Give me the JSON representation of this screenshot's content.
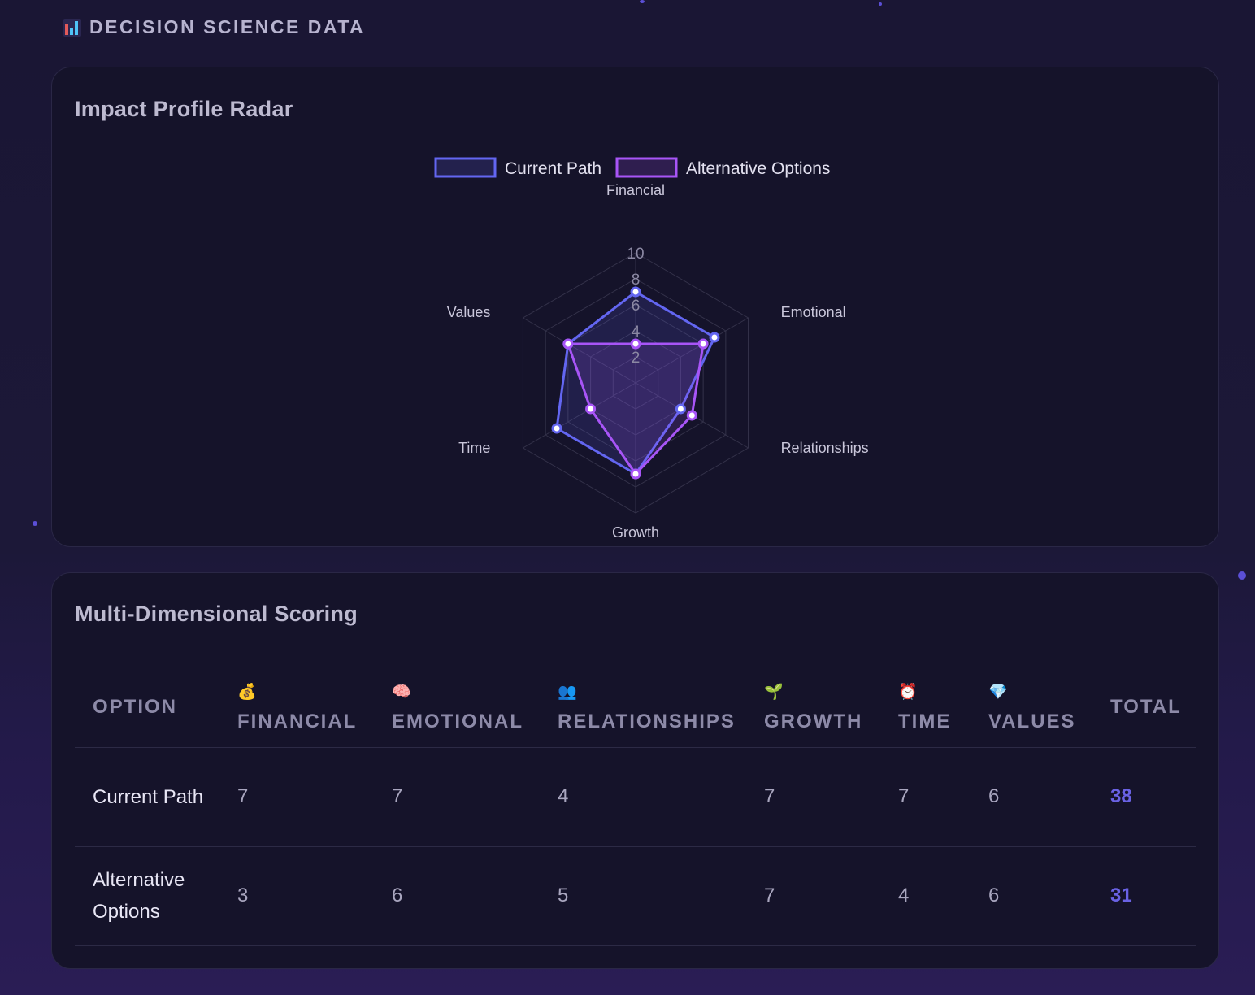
{
  "header": {
    "title": "DECISION SCIENCE DATA",
    "icon": "bar-chart-icon"
  },
  "radar": {
    "title": "Impact Profile Radar",
    "chart_data": {
      "type": "radar",
      "axes": [
        "Financial",
        "Emotional",
        "Relationships",
        "Growth",
        "Time",
        "Values"
      ],
      "ticks": [
        "2",
        "4",
        "6",
        "8",
        "10"
      ],
      "range": [
        0,
        10
      ],
      "legend_position": "top",
      "series": [
        {
          "name": "Current Path",
          "color": "#6366f1",
          "values": [
            7,
            7,
            4,
            7,
            7,
            6
          ]
        },
        {
          "name": "Alternative Options",
          "color": "#a855f7",
          "values": [
            3,
            6,
            5,
            7,
            4,
            6
          ]
        }
      ]
    }
  },
  "scoring": {
    "title": "Multi-Dimensional Scoring",
    "columns": [
      {
        "label": "OPTION",
        "icon": ""
      },
      {
        "label": "FINANCIAL",
        "icon": "💰"
      },
      {
        "label": "EMOTIONAL",
        "icon": "🧠"
      },
      {
        "label": "RELATIONSHIPS",
        "icon": "👥"
      },
      {
        "label": "GROWTH",
        "icon": "🌱"
      },
      {
        "label": "TIME",
        "icon": "⏰"
      },
      {
        "label": "VALUES",
        "icon": "💎"
      },
      {
        "label": "TOTAL",
        "icon": ""
      }
    ],
    "rows": [
      {
        "option": "Current Path",
        "values": [
          "7",
          "7",
          "4",
          "7",
          "7",
          "6"
        ],
        "total": "38"
      },
      {
        "option": "Alternative Options",
        "values": [
          "3",
          "6",
          "5",
          "7",
          "4",
          "6"
        ],
        "total": "31"
      }
    ],
    "accent": "#6a62e4"
  }
}
